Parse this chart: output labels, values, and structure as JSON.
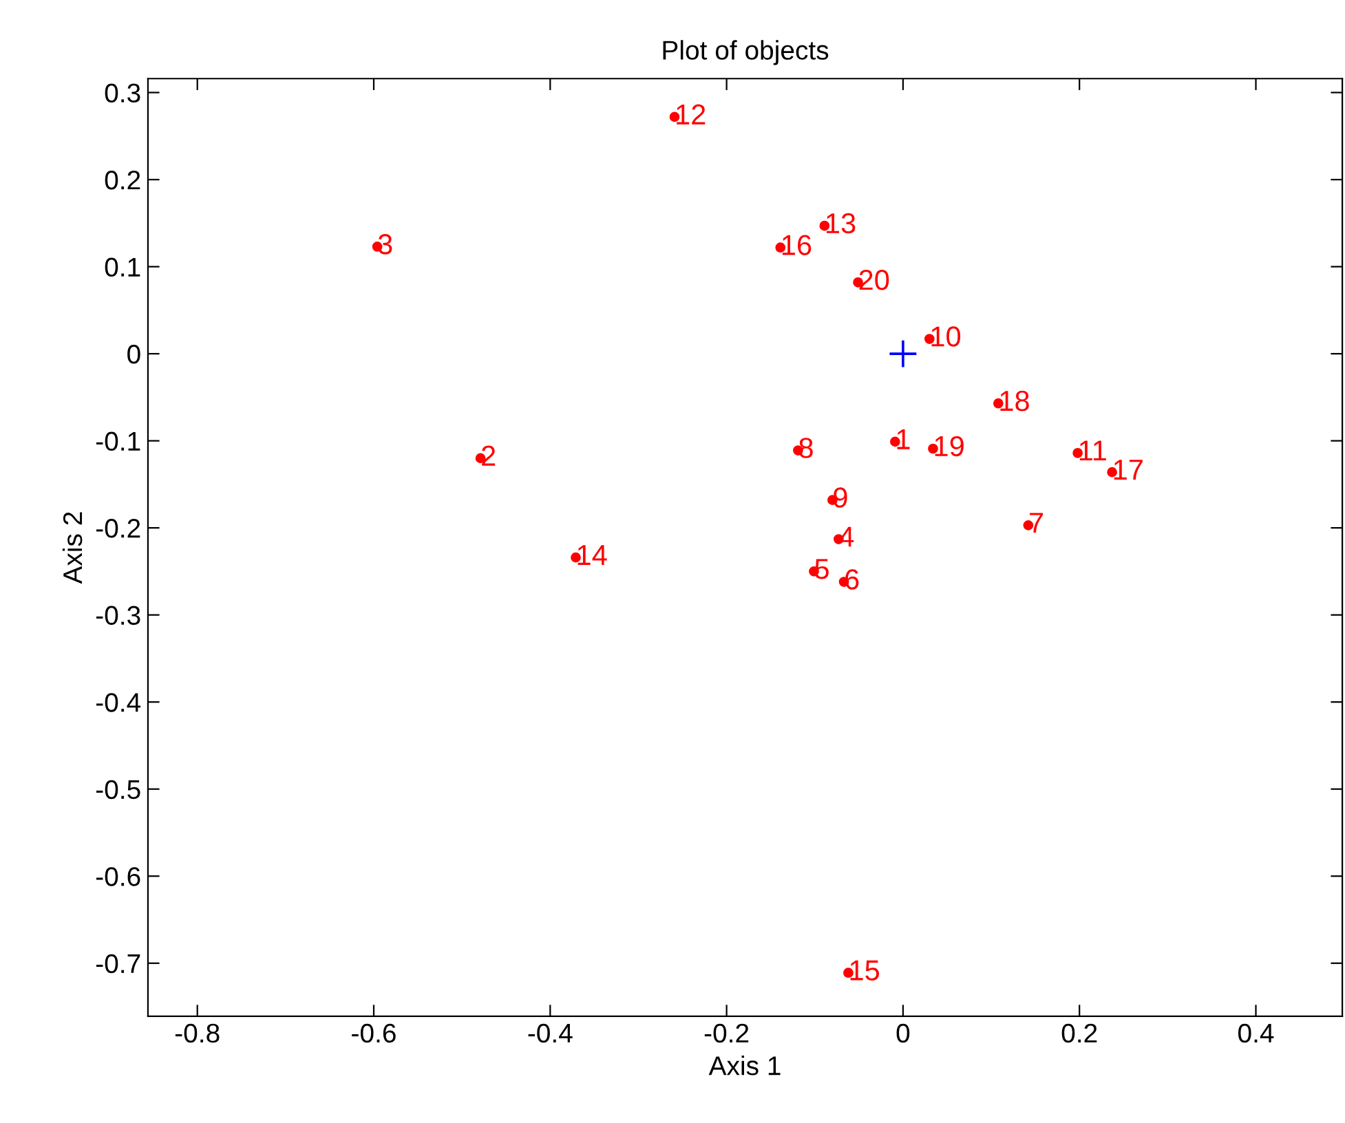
{
  "chart_data": {
    "type": "scatter",
    "title": "Plot of objects",
    "xlabel": "Axis 1",
    "ylabel": "Axis 2",
    "xlim": [
      -0.856,
      0.498
    ],
    "ylim": [
      -0.761,
      0.316
    ],
    "xticks": [
      -0.8,
      -0.6,
      -0.4,
      -0.2,
      0,
      0.2,
      0.4
    ],
    "yticks": [
      -0.7,
      -0.6,
      -0.5,
      -0.4,
      -0.3,
      -0.2,
      -0.1,
      0,
      0.1,
      0.2,
      0.3
    ],
    "grid": false,
    "legend": false,
    "series": [
      {
        "color": "#ff0000",
        "marker": "circle",
        "x": [
          -0.009,
          -0.479,
          -0.596,
          -0.073,
          -0.101,
          -0.067,
          0.142,
          -0.119,
          -0.08,
          0.03,
          0.198,
          -0.259,
          -0.089,
          -0.371,
          -0.062,
          -0.139,
          0.237,
          0.108,
          0.034,
          -0.051
        ],
        "values": [
          -0.101,
          -0.12,
          0.123,
          -0.213,
          -0.25,
          -0.262,
          -0.197,
          -0.111,
          -0.168,
          0.017,
          -0.114,
          0.272,
          0.147,
          -0.234,
          -0.711,
          0.122,
          -0.136,
          -0.057,
          -0.109,
          0.082
        ]
      },
      {
        "color": "#0000ff",
        "marker": "cross",
        "x": [
          0
        ],
        "values": [
          0
        ]
      }
    ],
    "annotations": [
      {
        "text": "1",
        "x": -0.009,
        "y": -0.101
      },
      {
        "text": "2",
        "x": -0.479,
        "y": -0.12
      },
      {
        "text": "3",
        "x": -0.596,
        "y": 0.123
      },
      {
        "text": "4",
        "x": -0.073,
        "y": -0.213
      },
      {
        "text": "5",
        "x": -0.101,
        "y": -0.25
      },
      {
        "text": "6",
        "x": -0.067,
        "y": -0.262
      },
      {
        "text": "7",
        "x": 0.142,
        "y": -0.197
      },
      {
        "text": "8",
        "x": -0.119,
        "y": -0.111
      },
      {
        "text": "9",
        "x": -0.08,
        "y": -0.168
      },
      {
        "text": "10",
        "x": 0.03,
        "y": 0.017
      },
      {
        "text": "11",
        "x": 0.198,
        "y": -0.114
      },
      {
        "text": "12",
        "x": -0.259,
        "y": 0.272
      },
      {
        "text": "13",
        "x": -0.089,
        "y": 0.147
      },
      {
        "text": "14",
        "x": -0.371,
        "y": -0.234
      },
      {
        "text": "15",
        "x": -0.062,
        "y": -0.711
      },
      {
        "text": "16",
        "x": -0.139,
        "y": 0.122
      },
      {
        "text": "17",
        "x": 0.237,
        "y": -0.136
      },
      {
        "text": "18",
        "x": 0.108,
        "y": -0.057
      },
      {
        "text": "19",
        "x": 0.034,
        "y": -0.109
      },
      {
        "text": "20",
        "x": -0.051,
        "y": 0.082
      }
    ]
  }
}
